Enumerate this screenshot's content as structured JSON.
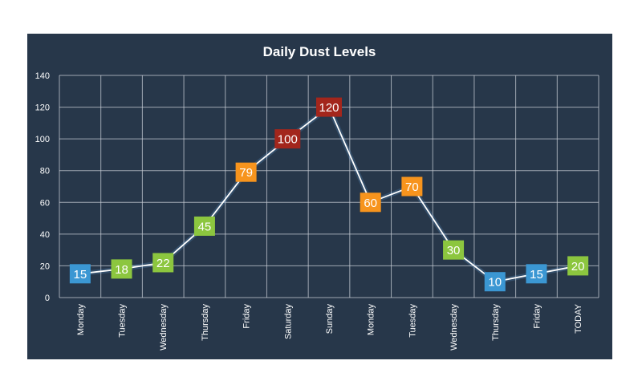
{
  "chart_data": {
    "type": "line",
    "title": "Daily Dust Levels",
    "xlabel": "",
    "ylabel": "",
    "categories": [
      "Monday",
      "Tuesday",
      "Wednesday",
      "Thursday",
      "Friday",
      "Saturday",
      "Sunday",
      "Monday",
      "Tuesday",
      "Wednesday",
      "Thursday",
      "Friday",
      "TODAY"
    ],
    "series": [
      {
        "values": [
          15,
          18,
          22,
          45,
          79,
          100,
          120,
          60,
          70,
          30,
          10,
          15,
          20
        ]
      }
    ],
    "point_colors": [
      "#3b97d3",
      "#8cc63f",
      "#8cc63f",
      "#8cc63f",
      "#f7941d",
      "#a3261c",
      "#a3261c",
      "#f7941d",
      "#f7941d",
      "#8cc63f",
      "#3b97d3",
      "#3b97d3",
      "#8cc63f"
    ],
    "ylim": [
      0,
      140
    ],
    "yticks": [
      0,
      20,
      40,
      60,
      80,
      100,
      120,
      140
    ],
    "grid": true,
    "legend": "none",
    "colors": {
      "background": "#27374a",
      "grid": "#c8ced6",
      "line": "#ffffff",
      "text": "#ffffff"
    }
  }
}
